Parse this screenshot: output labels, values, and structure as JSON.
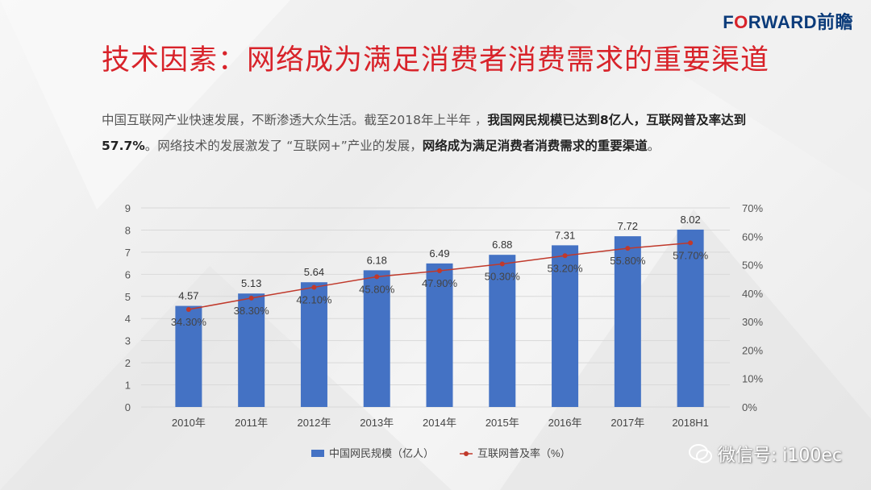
{
  "brand": {
    "logo_text_a": "F",
    "logo_text_o": "O",
    "logo_text_b": "RWARD前瞻",
    "primary": "#0b3b7a",
    "accent": "#d8232a"
  },
  "title": "技术因素：网络成为满足消费者消费需求的重要渠道",
  "paragraph": {
    "p1": "中国互联网产业快速发展，不断渗透大众生活。截至2018年上半年 ，",
    "b1": "我国网民规模已达到8亿人，互联网普及率达到57.7%",
    "p2": "。网络技术的发展激发了 “互联网+”产业的发展，",
    "b2": "网络成为满足消费者消费需求的重要渠道",
    "p3": "。"
  },
  "watermark": {
    "text": "微信号: i100ec",
    "icon": "wechat-icon"
  },
  "chart_data": {
    "type": "bar",
    "categories": [
      "2010年",
      "2011年",
      "2012年",
      "2013年",
      "2014年",
      "2015年",
      "2016年",
      "2017年",
      "2018H1"
    ],
    "series": [
      {
        "name": "中国网民规模（亿人）",
        "type": "bar",
        "axis": "left",
        "color": "#4472c4",
        "values": [
          4.57,
          5.13,
          5.64,
          6.18,
          6.49,
          6.88,
          7.31,
          7.72,
          8.02
        ],
        "labels": [
          "4.57",
          "5.13",
          "5.64",
          "6.18",
          "6.49",
          "6.88",
          "7.31",
          "7.72",
          "8.02"
        ]
      },
      {
        "name": "互联网普及率（%）",
        "type": "line",
        "axis": "right",
        "color": "#c0392b",
        "values": [
          34.3,
          38.3,
          42.1,
          45.8,
          47.9,
          50.3,
          53.2,
          55.8,
          57.7
        ],
        "labels": [
          "34.30%",
          "38.30%",
          "42.10%",
          "45.80%",
          "47.90%",
          "50.30%",
          "53.20%",
          "55.80%",
          "57.70%"
        ]
      }
    ],
    "y_left": {
      "min": 0,
      "max": 9,
      "ticks": [
        "0",
        "1",
        "2",
        "3",
        "4",
        "5",
        "6",
        "7",
        "8",
        "9"
      ]
    },
    "y_right": {
      "min": 0,
      "max": 70,
      "ticks": [
        "0%",
        "10%",
        "20%",
        "30%",
        "40%",
        "50%",
        "60%",
        "70%"
      ]
    },
    "grid": true,
    "legend": "bottom"
  }
}
